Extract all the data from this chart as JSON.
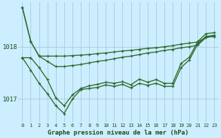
{
  "title": "Graphe pression niveau de la mer (hPa)",
  "bg_color": "#cceeff",
  "grid_color": "#aaccdd",
  "line_color": "#2d6a2d",
  "label_color": "#1a4a1a",
  "yticks": [
    1017,
    1018
  ],
  "xtick_labels": [
    "0",
    "1",
    "2",
    "3",
    "4",
    "5",
    "6",
    "7",
    "8",
    "9",
    "10",
    "11",
    "12",
    "13",
    "14",
    "15",
    "16",
    "17",
    "18",
    "19",
    "20",
    "21",
    "22",
    "23"
  ],
  "xlim": [
    -0.5,
    23.5
  ],
  "ylim": [
    1016.55,
    1018.85
  ],
  "series": {
    "line1": [
      1018.75,
      1018.1,
      1017.82,
      1017.82,
      1017.82,
      1017.82,
      1017.83,
      1017.84,
      1017.85,
      1017.87,
      1017.88,
      1017.9,
      1017.92,
      1017.93,
      1017.95,
      1017.97,
      1017.98,
      1018.0,
      1018.02,
      1018.05,
      1018.07,
      1018.09,
      1018.18,
      1018.2
    ],
    "line2": [
      1018.75,
      1018.1,
      1017.82,
      1017.72,
      1017.62,
      1017.62,
      1017.64,
      1017.66,
      1017.69,
      1017.72,
      1017.74,
      1017.77,
      1017.8,
      1017.82,
      1017.85,
      1017.88,
      1017.9,
      1017.93,
      1017.95,
      1017.98,
      1018.0,
      1018.03,
      1018.18,
      1018.2
    ],
    "line3": [
      1017.79,
      1017.79,
      1017.6,
      1017.37,
      1017.02,
      1016.87,
      1017.08,
      1017.2,
      1017.25,
      1017.28,
      1017.32,
      1017.3,
      1017.33,
      1017.27,
      1017.38,
      1017.32,
      1017.37,
      1017.3,
      1017.3,
      1017.68,
      1017.8,
      1018.1,
      1018.25,
      1018.27
    ],
    "line4": [
      1017.79,
      1017.55,
      1017.3,
      1017.1,
      1016.87,
      1016.72,
      1017.0,
      1017.18,
      1017.2,
      1017.22,
      1017.27,
      1017.24,
      1017.28,
      1017.21,
      1017.3,
      1017.26,
      1017.3,
      1017.24,
      1017.24,
      1017.6,
      1017.75,
      1018.05,
      1018.2,
      1018.22
    ]
  },
  "linewidth": 1.0,
  "marker_size": 2.5
}
